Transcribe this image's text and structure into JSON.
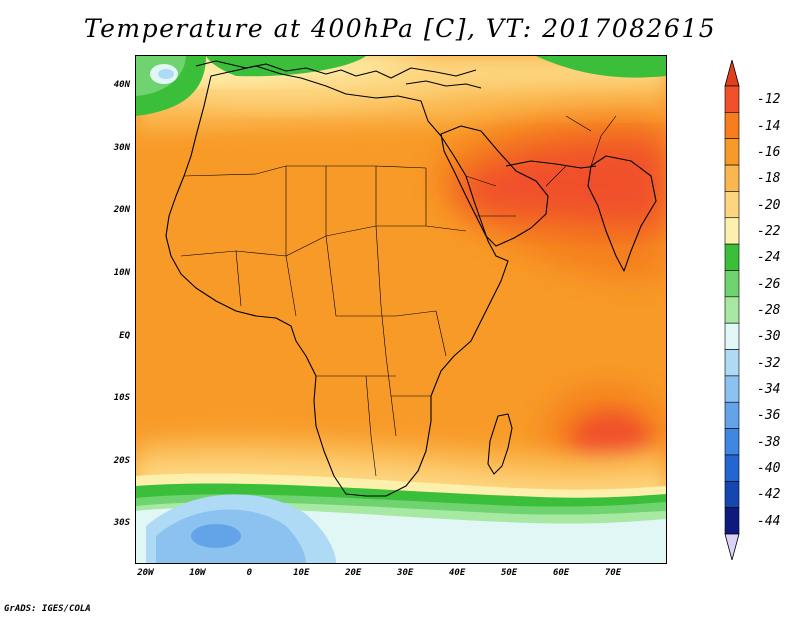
{
  "title": "Temperature at 400hPa [C], VT: 2017082615",
  "footer": "GrADS: IGES/COLA",
  "map": {
    "lon_range": [
      -22,
      80
    ],
    "lat_range": [
      -36,
      45
    ],
    "lat_ticks": [
      {
        "value": 40,
        "label": "40N"
      },
      {
        "value": 30,
        "label": "30N"
      },
      {
        "value": 20,
        "label": "20N"
      },
      {
        "value": 10,
        "label": "10N"
      },
      {
        "value": 0,
        "label": "EQ"
      },
      {
        "value": -10,
        "label": "10S"
      },
      {
        "value": -20,
        "label": "20S"
      },
      {
        "value": -30,
        "label": "30S"
      }
    ],
    "lon_ticks": [
      {
        "value": -20,
        "label": "20W"
      },
      {
        "value": -10,
        "label": "10W"
      },
      {
        "value": 0,
        "label": "0"
      },
      {
        "value": 10,
        "label": "10E"
      },
      {
        "value": 20,
        "label": "20E"
      },
      {
        "value": 30,
        "label": "30E"
      },
      {
        "value": 40,
        "label": "40E"
      },
      {
        "value": 50,
        "label": "50E"
      },
      {
        "value": 60,
        "label": "60E"
      },
      {
        "value": 70,
        "label": "70E"
      }
    ]
  },
  "colorbar": {
    "labels": [
      "-12",
      "-14",
      "-16",
      "-18",
      "-20",
      "-22",
      "-24",
      "-26",
      "-28",
      "-30",
      "-32",
      "-34",
      "-36",
      "-38",
      "-40",
      "-42",
      "-44"
    ],
    "colors": [
      "#f0502a",
      "#f57d1b",
      "#f89a28",
      "#fbb74f",
      "#fdd57f",
      "#fdf0ad",
      "#3bbf3b",
      "#6fd46f",
      "#a7e8a2",
      "#e0f7f5",
      "#aedaf6",
      "#8cc2f0",
      "#63a4e8",
      "#3e86e0",
      "#2366d1",
      "#1448b0",
      "#0f1a80"
    ],
    "top_arrow_color": "#e2401d",
    "bottom_arrow_color": "#dcd2f5"
  }
}
